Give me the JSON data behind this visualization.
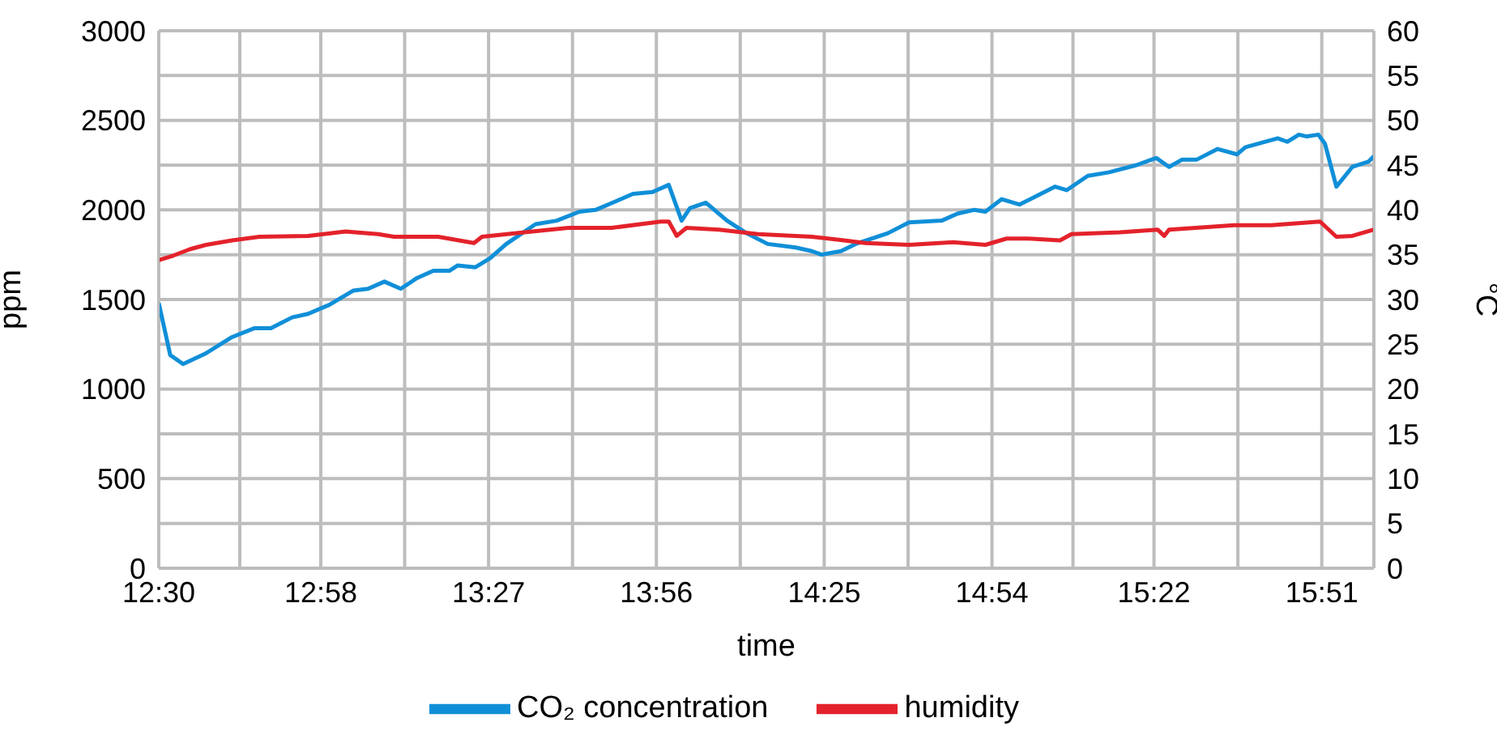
{
  "chart_data": {
    "type": "line",
    "xlabel": "time",
    "ylabel": "ppm",
    "y2label": "°C",
    "xlim": [
      12.5,
      16.0
    ],
    "xticks": [
      {
        "value": 12.5,
        "label": "12:30"
      },
      {
        "value": 12.7333,
        "label": null
      },
      {
        "value": 12.9667,
        "label": "12:58"
      },
      {
        "value": 13.2083,
        "label": null
      },
      {
        "value": 13.45,
        "label": "13:27"
      },
      {
        "value": 13.6917,
        "label": null
      },
      {
        "value": 13.9333,
        "label": "13:56"
      },
      {
        "value": 14.175,
        "label": null
      },
      {
        "value": 14.4167,
        "label": "14:25"
      },
      {
        "value": 14.6583,
        "label": null
      },
      {
        "value": 14.9,
        "label": "14:54"
      },
      {
        "value": 15.1333,
        "label": null
      },
      {
        "value": 15.3667,
        "label": "15:22"
      },
      {
        "value": 15.6083,
        "label": null
      },
      {
        "value": 15.85,
        "label": "15:51"
      }
    ],
    "ylim": [
      0,
      3000
    ],
    "yticks": [
      0,
      500,
      1000,
      1500,
      2000,
      2500,
      3000
    ],
    "y2lim": [
      0,
      60
    ],
    "y2ticks": [
      0,
      5,
      10,
      15,
      20,
      25,
      30,
      35,
      40,
      45,
      50,
      55,
      60
    ],
    "grid": true,
    "legend": "bottom",
    "marker": "none",
    "line_style": "solid",
    "series": [
      {
        "name": "CO₂ concentration",
        "color": "#108fd8",
        "x": [
          12.5,
          12.533,
          12.57,
          12.636,
          12.711,
          12.776,
          12.823,
          12.884,
          12.93,
          12.991,
          13.061,
          13.103,
          13.15,
          13.197,
          13.244,
          13.291,
          13.337,
          13.361,
          13.412,
          13.454,
          13.501,
          13.585,
          13.646,
          13.712,
          13.758,
          13.819,
          13.866,
          13.922,
          13.969,
          14.006,
          14.03,
          14.076,
          14.137,
          14.193,
          14.254,
          14.334,
          14.381,
          14.409,
          14.465,
          14.507,
          14.6,
          14.661,
          14.755,
          14.802,
          14.848,
          14.881,
          14.928,
          14.979,
          15.021,
          15.082,
          15.115,
          15.176,
          15.237,
          15.316,
          15.373,
          15.41,
          15.447,
          15.489,
          15.55,
          15.606,
          15.63,
          15.723,
          15.751,
          15.784,
          15.807,
          15.84,
          15.859,
          15.892,
          15.938,
          15.985,
          16.0
        ],
        "values": [
          1480,
          1190,
          1140,
          1200,
          1290,
          1340,
          1340,
          1400,
          1420,
          1470,
          1550,
          1560,
          1600,
          1560,
          1620,
          1660,
          1660,
          1690,
          1680,
          1730,
          1810,
          1920,
          1940,
          1990,
          2000,
          2050,
          2090,
          2100,
          2140,
          1940,
          2010,
          2040,
          1940,
          1870,
          1810,
          1790,
          1770,
          1750,
          1770,
          1810,
          1870,
          1930,
          1940,
          1980,
          2000,
          1990,
          2060,
          2030,
          2070,
          2130,
          2110,
          2190,
          2210,
          2250,
          2290,
          2240,
          2280,
          2280,
          2340,
          2310,
          2350,
          2400,
          2380,
          2420,
          2410,
          2420,
          2370,
          2130,
          2240,
          2270,
          2300
        ]
      },
      {
        "name": "humidity",
        "color": "#e3222b",
        "axis": "y2",
        "x": [
          12.5,
          12.542,
          12.589,
          12.636,
          12.711,
          12.79,
          12.93,
          13.038,
          13.132,
          13.178,
          13.305,
          13.408,
          13.431,
          13.553,
          13.679,
          13.805,
          13.946,
          13.969,
          13.992,
          14.02,
          14.114,
          14.226,
          14.381,
          14.474,
          14.535,
          14.661,
          14.788,
          14.881,
          14.942,
          15.003,
          15.096,
          15.129,
          15.269,
          15.377,
          15.396,
          15.41,
          15.597,
          15.704,
          15.845,
          15.892,
          15.938,
          16.0
        ],
        "values": [
          34.4,
          34.9,
          35.6,
          36.1,
          36.6,
          37.0,
          37.1,
          37.6,
          37.3,
          37.0,
          37.0,
          36.3,
          37.0,
          37.5,
          38.0,
          38.0,
          38.7,
          38.7,
          37.1,
          38.0,
          37.8,
          37.3,
          37.0,
          36.6,
          36.3,
          36.1,
          36.4,
          36.1,
          36.8,
          36.8,
          36.6,
          37.3,
          37.5,
          37.8,
          37.1,
          37.8,
          38.3,
          38.3,
          38.7,
          37.0,
          37.1,
          37.8
        ]
      }
    ]
  }
}
